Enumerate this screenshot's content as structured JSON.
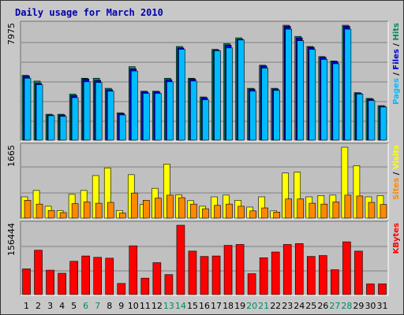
{
  "title": "Daily usage for March 2010",
  "chart_data": [
    {
      "type": "bar",
      "panel": "top",
      "ymax_label": "7975",
      "ymax": 7975,
      "grid": true,
      "right_label": [
        {
          "text": "Pages",
          "color": "#00bbff"
        },
        {
          "text": " / ",
          "color": "#000000"
        },
        {
          "text": "Files",
          "color": "#0000cc"
        },
        {
          "text": " / ",
          "color": "#000000"
        },
        {
          "text": "Hits",
          "color": "#008866"
        }
      ],
      "categories": [
        "1",
        "2",
        "3",
        "4",
        "5",
        "6",
        "7",
        "8",
        "9",
        "10",
        "11",
        "12",
        "13",
        "14",
        "15",
        "16",
        "17",
        "18",
        "19",
        "20",
        "21",
        "22",
        "23",
        "24",
        "25",
        "26",
        "27",
        "28",
        "29",
        "30",
        "31"
      ],
      "series": [
        {
          "name": "Hits",
          "color": "#008866",
          "values": [
            4500,
            4100,
            1800,
            1800,
            3200,
            4300,
            4300,
            3600,
            1900,
            5100,
            3400,
            3400,
            4300,
            6500,
            4300,
            3000,
            6300,
            6700,
            7100,
            3600,
            5200,
            3600,
            7975,
            7200,
            6500,
            5800,
            5500,
            7975,
            3300,
            2900,
            2400
          ]
        },
        {
          "name": "Files",
          "color": "#0000cc",
          "values": [
            4450,
            3950,
            1750,
            1750,
            3100,
            4250,
            4150,
            3500,
            1850,
            4950,
            3350,
            3350,
            4200,
            6400,
            4250,
            2950,
            6250,
            6600,
            7000,
            3550,
            5150,
            3550,
            7900,
            7100,
            6450,
            5750,
            5450,
            7900,
            3250,
            2850,
            2350
          ]
        },
        {
          "name": "Pages",
          "color": "#00bbff",
          "values": [
            4300,
            3850,
            1700,
            1650,
            2950,
            4050,
            4000,
            3400,
            1750,
            4800,
            3250,
            3250,
            4050,
            6300,
            4100,
            2800,
            6200,
            6400,
            6950,
            3400,
            5000,
            3450,
            7700,
            6900,
            6300,
            5600,
            5300,
            7700,
            3200,
            2750,
            2300
          ]
        }
      ]
    },
    {
      "type": "bar",
      "panel": "middle",
      "ymax_label": "1665",
      "ymax": 1665,
      "grid": true,
      "right_label": [
        {
          "text": "Sites",
          "color": "#ff8800"
        },
        {
          "text": " / ",
          "color": "#000000"
        },
        {
          "text": "Visits",
          "color": "#ffff00"
        }
      ],
      "categories": [
        "1",
        "2",
        "3",
        "4",
        "5",
        "6",
        "7",
        "8",
        "9",
        "10",
        "11",
        "12",
        "13",
        "14",
        "15",
        "16",
        "17",
        "18",
        "19",
        "20",
        "21",
        "22",
        "23",
        "24",
        "25",
        "26",
        "27",
        "28",
        "29",
        "30",
        "31"
      ],
      "series": [
        {
          "name": "Visits",
          "color": "#ffff00",
          "values": [
            500,
            650,
            280,
            180,
            560,
            650,
            1000,
            1180,
            180,
            1020,
            320,
            700,
            1270,
            550,
            410,
            280,
            500,
            540,
            420,
            260,
            500,
            170,
            1060,
            1080,
            500,
            530,
            540,
            1665,
            1230,
            500,
            530
          ]
        },
        {
          "name": "Sites",
          "color": "#ff8800",
          "values": [
            420,
            330,
            180,
            130,
            340,
            380,
            350,
            370,
            120,
            590,
            420,
            470,
            540,
            480,
            330,
            220,
            300,
            330,
            280,
            170,
            240,
            140,
            450,
            450,
            350,
            330,
            380,
            540,
            520,
            370,
            320
          ]
        }
      ]
    },
    {
      "type": "bar",
      "panel": "bottom",
      "ymax_label": "156444",
      "ymax": 156444,
      "grid": true,
      "right_label": [
        {
          "text": "KBytes",
          "color": "#ff0000"
        }
      ],
      "categories": [
        "1",
        "2",
        "3",
        "4",
        "5",
        "6",
        "7",
        "8",
        "9",
        "10",
        "11",
        "12",
        "13",
        "14",
        "15",
        "16",
        "17",
        "18",
        "19",
        "20",
        "21",
        "22",
        "23",
        "24",
        "25",
        "26",
        "27",
        "28",
        "29",
        "30",
        "31"
      ],
      "series": [
        {
          "name": "KBytes",
          "color": "#ff0000",
          "values": [
            58000,
            100000,
            55000,
            48000,
            75000,
            87000,
            84000,
            82000,
            25000,
            110000,
            37000,
            72000,
            45000,
            156444,
            98000,
            86000,
            87000,
            111000,
            113000,
            47000,
            83000,
            96000,
            113000,
            115000,
            86000,
            88000,
            56000,
            119000,
            98000,
            24000,
            24000
          ]
        }
      ]
    }
  ],
  "x_axis": {
    "labels": [
      "1",
      "2",
      "3",
      "4",
      "5",
      "6",
      "7",
      "8",
      "9",
      "10",
      "11",
      "12",
      "13",
      "14",
      "15",
      "16",
      "17",
      "18",
      "19",
      "20",
      "21",
      "22",
      "23",
      "24",
      "25",
      "26",
      "27",
      "28",
      "29",
      "30",
      "31"
    ],
    "weekend_days": [
      "6",
      "7",
      "13",
      "14",
      "20",
      "21",
      "27",
      "28"
    ],
    "weekday_color": "#000000",
    "weekend_color": "#008866"
  }
}
